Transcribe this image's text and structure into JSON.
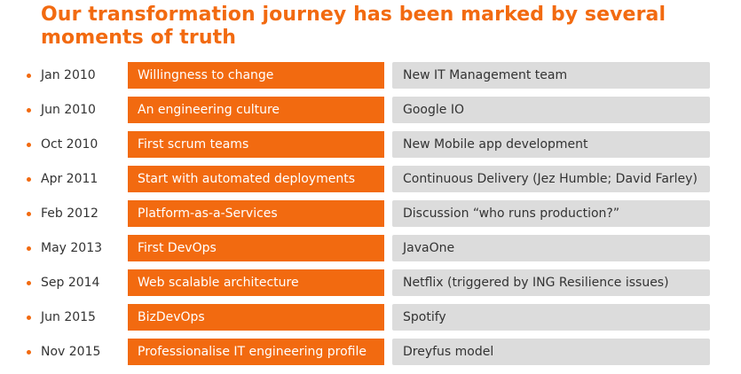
{
  "title": "Our transformation journey has been marked by several moments of truth",
  "colors": {
    "accent": "#f26a10",
    "trigger_bg": "#dcdcdc",
    "text": "#333333"
  },
  "timeline": [
    {
      "date": "Jan 2010",
      "milestone": "Willingness to change",
      "trigger": "New IT Management team"
    },
    {
      "date": "Jun 2010",
      "milestone": "An engineering culture",
      "trigger": "Google IO"
    },
    {
      "date": "Oct 2010",
      "milestone": "First scrum teams",
      "trigger": "New Mobile app development"
    },
    {
      "date": "Apr 2011",
      "milestone": "Start with automated deployments",
      "trigger": "Continuous Delivery (Jez Humble; David Farley)"
    },
    {
      "date": "Feb 2012",
      "milestone": "Platform-as-a-Services",
      "trigger": "Discussion “who runs production?”"
    },
    {
      "date": "May 2013",
      "milestone": "First DevOps",
      "trigger": "JavaOne"
    },
    {
      "date": "Sep 2014",
      "milestone": "Web scalable architecture",
      "trigger": "Netflix (triggered by ING Resilience issues)"
    },
    {
      "date": "Jun 2015",
      "milestone": "BizDevOps",
      "trigger": "Spotify"
    },
    {
      "date": "Nov 2015",
      "milestone": "Professionalise IT engineering profile",
      "trigger": "Dreyfus model"
    }
  ]
}
